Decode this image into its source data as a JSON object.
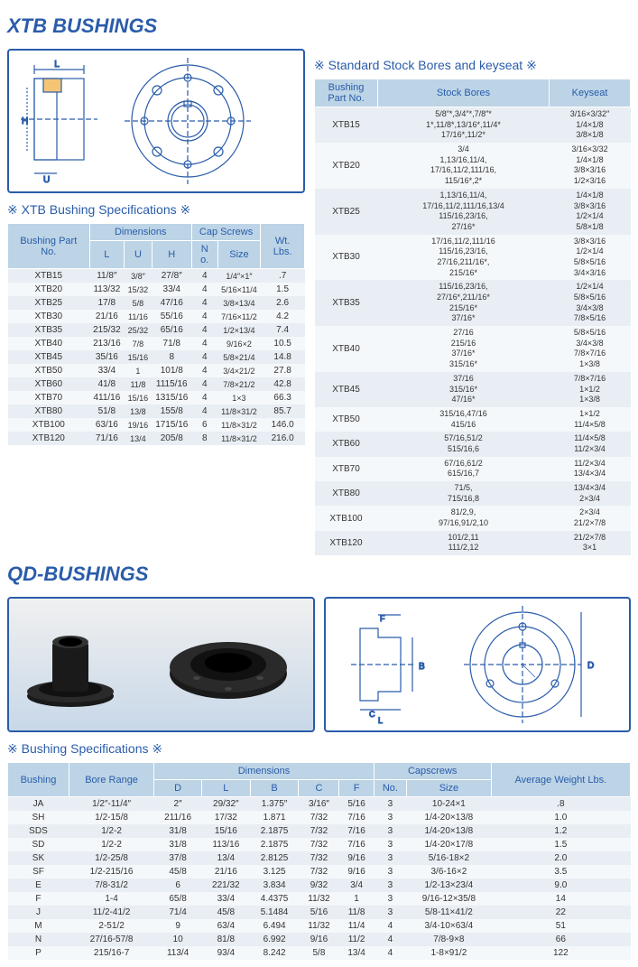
{
  "xtb": {
    "title": "XTB BUSHINGS",
    "spec_header": "※ XTB Bushing Specifications ※",
    "bores_header": "※ Standard Stock Bores and keyseat ※",
    "columns": {
      "part": "Bushing Part No.",
      "dim": "Dimensions",
      "L": "L",
      "U": "U",
      "H": "H",
      "cap": "Cap Screws",
      "no": "N o.",
      "size": "Size",
      "wt": "Wt. Lbs."
    },
    "rows": [
      {
        "p": "XTB15",
        "L": "11/8″",
        "U": "3/8″",
        "H": "27/8″",
        "n": "4",
        "s": "1/4″×1″",
        "w": ".7"
      },
      {
        "p": "XTB20",
        "L": "113/32",
        "U": "15/32",
        "H": "33/4",
        "n": "4",
        "s": "5/16×11/4",
        "w": "1.5"
      },
      {
        "p": "XTB25",
        "L": "17/8",
        "U": "5/8",
        "H": "47/16",
        "n": "4",
        "s": "3/8×13/4",
        "w": "2.6"
      },
      {
        "p": "XTB30",
        "L": "21/16",
        "U": "11/16",
        "H": "55/16",
        "n": "4",
        "s": "7/16×11/2",
        "w": "4.2"
      },
      {
        "p": "XTB35",
        "L": "215/32",
        "U": "25/32",
        "H": "65/16",
        "n": "4",
        "s": "1/2×13/4",
        "w": "7.4"
      },
      {
        "p": "XTB40",
        "L": "213/16",
        "U": "7/8",
        "H": "71/8",
        "n": "4",
        "s": "9/16×2",
        "w": "10.5"
      },
      {
        "p": "XTB45",
        "L": "35/16",
        "U": "15/16",
        "H": "8",
        "n": "4",
        "s": "5/8×21/4",
        "w": "14.8"
      },
      {
        "p": "XTB50",
        "L": "33/4",
        "U": "1",
        "H": "101/8",
        "n": "4",
        "s": "3/4×21/2",
        "w": "27.8"
      },
      {
        "p": "XTB60",
        "L": "41/8",
        "U": "11/8",
        "H": "1115/16",
        "n": "4",
        "s": "7/8×21/2",
        "w": "42.8"
      },
      {
        "p": "XTB70",
        "L": "411/16",
        "U": "15/16",
        "H": "1315/16",
        "n": "4",
        "s": "1×3",
        "w": "66.3"
      },
      {
        "p": "XTB80",
        "L": "51/8",
        "U": "13/8",
        "H": "155/8",
        "n": "4",
        "s": "11/8×31/2",
        "w": "85.7"
      },
      {
        "p": "XTB100",
        "L": "63/16",
        "U": "19/16",
        "H": "1715/16",
        "n": "6",
        "s": "11/8×31/2",
        "w": "146.0"
      },
      {
        "p": "XTB120",
        "L": "71/16",
        "U": "13/4",
        "H": "205/8",
        "n": "8",
        "s": "11/8×31/2",
        "w": "216.0"
      }
    ],
    "bores_cols": {
      "part": "Bushing Part No.",
      "stock": "Stock Bores",
      "key": "Keyseat"
    },
    "bores": [
      {
        "p": "XTB15",
        "s": "5/8″*,3/4″*,7/8″*\n1*,11/8*,13/16*,11/4*\n17/16*,11/2*",
        "k": "3/16×3/32″\n1/4×1/8\n3/8×1/8"
      },
      {
        "p": "XTB20",
        "s": "3/4\n1,13/16,11/4,\n17/16,11/2,111/16,\n115/16*,2*",
        "k": "3/16×3/32\n1/4×1/8\n3/8×3/16\n1/2×3/16"
      },
      {
        "p": "XTB25",
        "s": "1,13/16,11/4,\n17/16,11/2,111/16,13/4\n115/16,23/16,\n27/16*",
        "k": "1/4×1/8\n3/8×3/16\n1/2×1/4\n5/8×1/8"
      },
      {
        "p": "XTB30",
        "s": "17/16,11/2,111/16\n115/16,23/16,\n27/16,211/16*,\n215/16*",
        "k": "3/8×3/16\n1/2×1/4\n5/8×5/16\n3/4×3/16"
      },
      {
        "p": "XTB35",
        "s": "115/16,23/16,\n27/16*,211/16*\n215/16*\n37/16*",
        "k": "1/2×1/4\n5/8×5/16\n3/4×3/8\n7/8×5/16"
      },
      {
        "p": "XTB40",
        "s": "27/16\n215/16\n37/16*\n315/16*",
        "k": "5/8×5/16\n3/4×3/8\n7/8×7/16\n1×3/8"
      },
      {
        "p": "XTB45",
        "s": "37/16\n315/16*\n47/16*",
        "k": "7/8×7/16\n1×1/2\n1×3/8"
      },
      {
        "p": "XTB50",
        "s": "315/16,47/16\n415/16",
        "k": "1×1/2\n11/4×5/8"
      },
      {
        "p": "XTB60",
        "s": "57/16,51/2\n515/16,6",
        "k": "11/4×5/8\n11/2×3/4"
      },
      {
        "p": "XTB70",
        "s": "67/16,61/2\n615/16,7",
        "k": "11/2×3/4\n13/4×3/4"
      },
      {
        "p": "XTB80",
        "s": "71/5,\n715/16,8",
        "k": "13/4×3/4\n2×3/4"
      },
      {
        "p": "XTB100",
        "s": "81/2,9,\n97/16,91/2,10",
        "k": "2×3/4\n21/2×7/8"
      },
      {
        "p": "XTB120",
        "s": "101/2,11\n111/2,12",
        "k": "21/2×7/8\n3×1"
      }
    ]
  },
  "qd": {
    "title": "QD-BUSHINGS",
    "spec_header": "※ Bushing Specifications ※",
    "cols": {
      "b": "Bushing",
      "br": "Bore Range",
      "dim": "Dimensions",
      "D": "D",
      "L": "L",
      "B": "B",
      "C": "C",
      "F": "F",
      "cap": "Capscrews",
      "no": "No.",
      "size": "Size",
      "wt": "Average Weight Lbs."
    },
    "rows": [
      {
        "b": "JA",
        "br": "1/2″-11/4″",
        "D": "2″",
        "L": "29/32″",
        "B": "1.375″",
        "C": "3/16″",
        "F": "5/16",
        "n": "3",
        "s": "10-24×1",
        "w": ".8"
      },
      {
        "b": "SH",
        "br": "1/2-15/8",
        "D": "211/16",
        "L": "17/32",
        "B": "1.871",
        "C": "7/32",
        "F": "7/16",
        "n": "3",
        "s": "1/4-20×13/8",
        "w": "1.0"
      },
      {
        "b": "SDS",
        "br": "1/2-2",
        "D": "31/8",
        "L": "15/16",
        "B": "2.1875",
        "C": "7/32",
        "F": "7/16",
        "n": "3",
        "s": "1/4-20×13/8",
        "w": "1.2"
      },
      {
        "b": "SD",
        "br": "1/2-2",
        "D": "31/8",
        "L": "113/16",
        "B": "2.1875",
        "C": "7/32",
        "F": "7/16",
        "n": "3",
        "s": "1/4-20×17/8",
        "w": "1.5"
      },
      {
        "b": "SK",
        "br": "1/2-25/8",
        "D": "37/8",
        "L": "13/4",
        "B": "2.8125",
        "C": "7/32",
        "F": "9/16",
        "n": "3",
        "s": "5/16-18×2",
        "w": "2.0"
      },
      {
        "b": "SF",
        "br": "1/2-215/16",
        "D": "45/8",
        "L": "21/16",
        "B": "3.125",
        "C": "7/32",
        "F": "9/16",
        "n": "3",
        "s": "3/6-16×2",
        "w": "3.5"
      },
      {
        "b": "E",
        "br": "7/8-31/2",
        "D": "6",
        "L": "221/32",
        "B": "3.834",
        "C": "9/32",
        "F": "3/4",
        "n": "3",
        "s": "1/2-13×23/4",
        "w": "9.0"
      },
      {
        "b": "F",
        "br": "1-4",
        "D": "65/8",
        "L": "33/4",
        "B": "4.4375",
        "C": "11/32",
        "F": "1",
        "n": "3",
        "s": "9/16-12×35/8",
        "w": "14"
      },
      {
        "b": "J",
        "br": "11/2-41/2",
        "D": "71/4",
        "L": "45/8",
        "B": "5.1484",
        "C": "5/16",
        "F": "11/8",
        "n": "3",
        "s": "5/8-11×41/2",
        "w": "22"
      },
      {
        "b": "M",
        "br": "2-51/2",
        "D": "9",
        "L": "63/4",
        "B": "6.494",
        "C": "11/32",
        "F": "11/4",
        "n": "4",
        "s": "3/4-10×63/4",
        "w": "51"
      },
      {
        "b": "N",
        "br": "27/16-57/8",
        "D": "10",
        "L": "81/8",
        "B": "6.992",
        "C": "9/16",
        "F": "11/2",
        "n": "4",
        "s": "7/8-9×8",
        "w": "66"
      },
      {
        "b": "P",
        "br": "215/16-7",
        "D": "113/4",
        "L": "93/4",
        "B": "8.242",
        "C": "5/8",
        "F": "13/4",
        "n": "4",
        "s": "1-8×91/2",
        "w": "122"
      }
    ]
  }
}
